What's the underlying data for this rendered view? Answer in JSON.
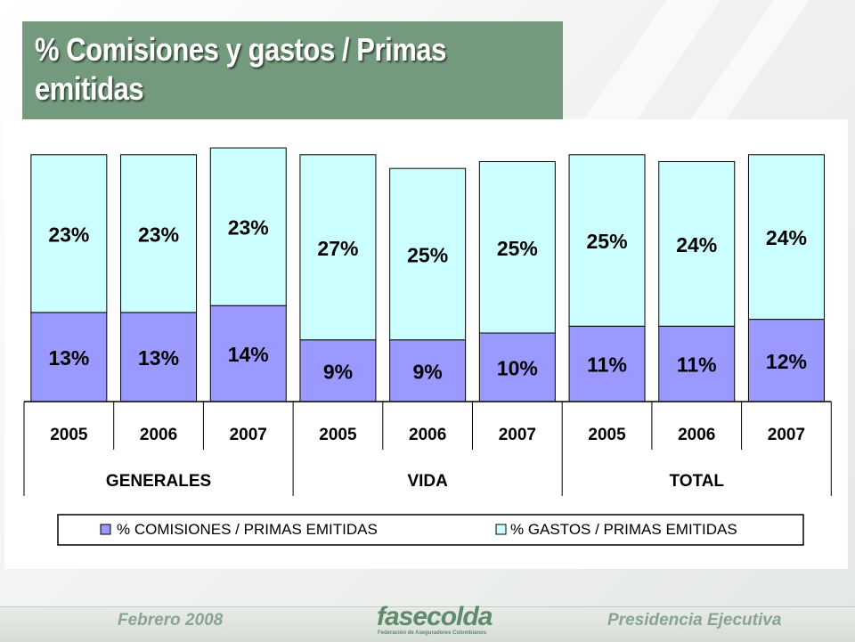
{
  "title": "% Comisiones y gastos / Primas emitidas",
  "footer": {
    "left": "Febrero  2008",
    "right": "Presidencia Ejecutiva",
    "logo_text": "fasecolda",
    "logo_subtitle": "Federación de Aseguradores Colombianos"
  },
  "colors": {
    "title_bg": "#739a7c",
    "comisiones": "#9999ff",
    "gastos": "#ccffff"
  },
  "chart_data": {
    "type": "bar",
    "stacked": true,
    "categories": [
      "2005",
      "2006",
      "2007",
      "2005",
      "2006",
      "2007",
      "2005",
      "2006",
      "2007"
    ],
    "groups": [
      {
        "name": "GENERALES",
        "categories": [
          "2005",
          "2006",
          "2007"
        ]
      },
      {
        "name": "VIDA",
        "categories": [
          "2005",
          "2006",
          "2007"
        ]
      },
      {
        "name": "TOTAL",
        "categories": [
          "2005",
          "2006",
          "2007"
        ]
      }
    ],
    "series": [
      {
        "name": "% COMISIONES /  PRIMAS EMITIDAS",
        "values": [
          13,
          13,
          14,
          9,
          9,
          10,
          11,
          11,
          12
        ],
        "labels": [
          "13%",
          "13%",
          "14%",
          "9%",
          "9%",
          "10%",
          "11%",
          "11%",
          "12%"
        ],
        "color": "#9999ff"
      },
      {
        "name": "% GASTOS / PRIMAS EMITIDAS",
        "values": [
          23,
          23,
          23,
          27,
          25,
          25,
          25,
          24,
          24
        ],
        "labels": [
          "23%",
          "23%",
          "23%",
          "27%",
          "25%",
          "25%",
          "25%",
          "24%",
          "24%"
        ],
        "color": "#ccffff"
      }
    ],
    "legend_position": "bottom",
    "grid": false
  }
}
